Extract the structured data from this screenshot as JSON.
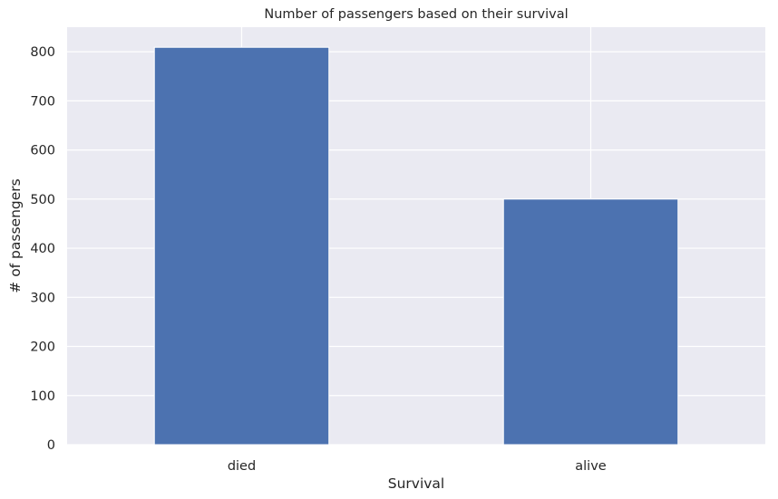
{
  "chart_data": {
    "type": "bar",
    "title": "Number of passengers based on their survival",
    "xlabel": "Survival",
    "ylabel": "# of passengers",
    "categories": [
      "died",
      "alive"
    ],
    "values": [
      809,
      500
    ],
    "ylim": [
      0,
      850
    ],
    "yticks": [
      0,
      100,
      200,
      300,
      400,
      500,
      600,
      700,
      800
    ],
    "grid": true,
    "legend": "none",
    "colors": {
      "bar": "#4c72b0",
      "plot_background": "#eaeaf2",
      "grid": "#ffffff",
      "text": "#262626"
    }
  }
}
